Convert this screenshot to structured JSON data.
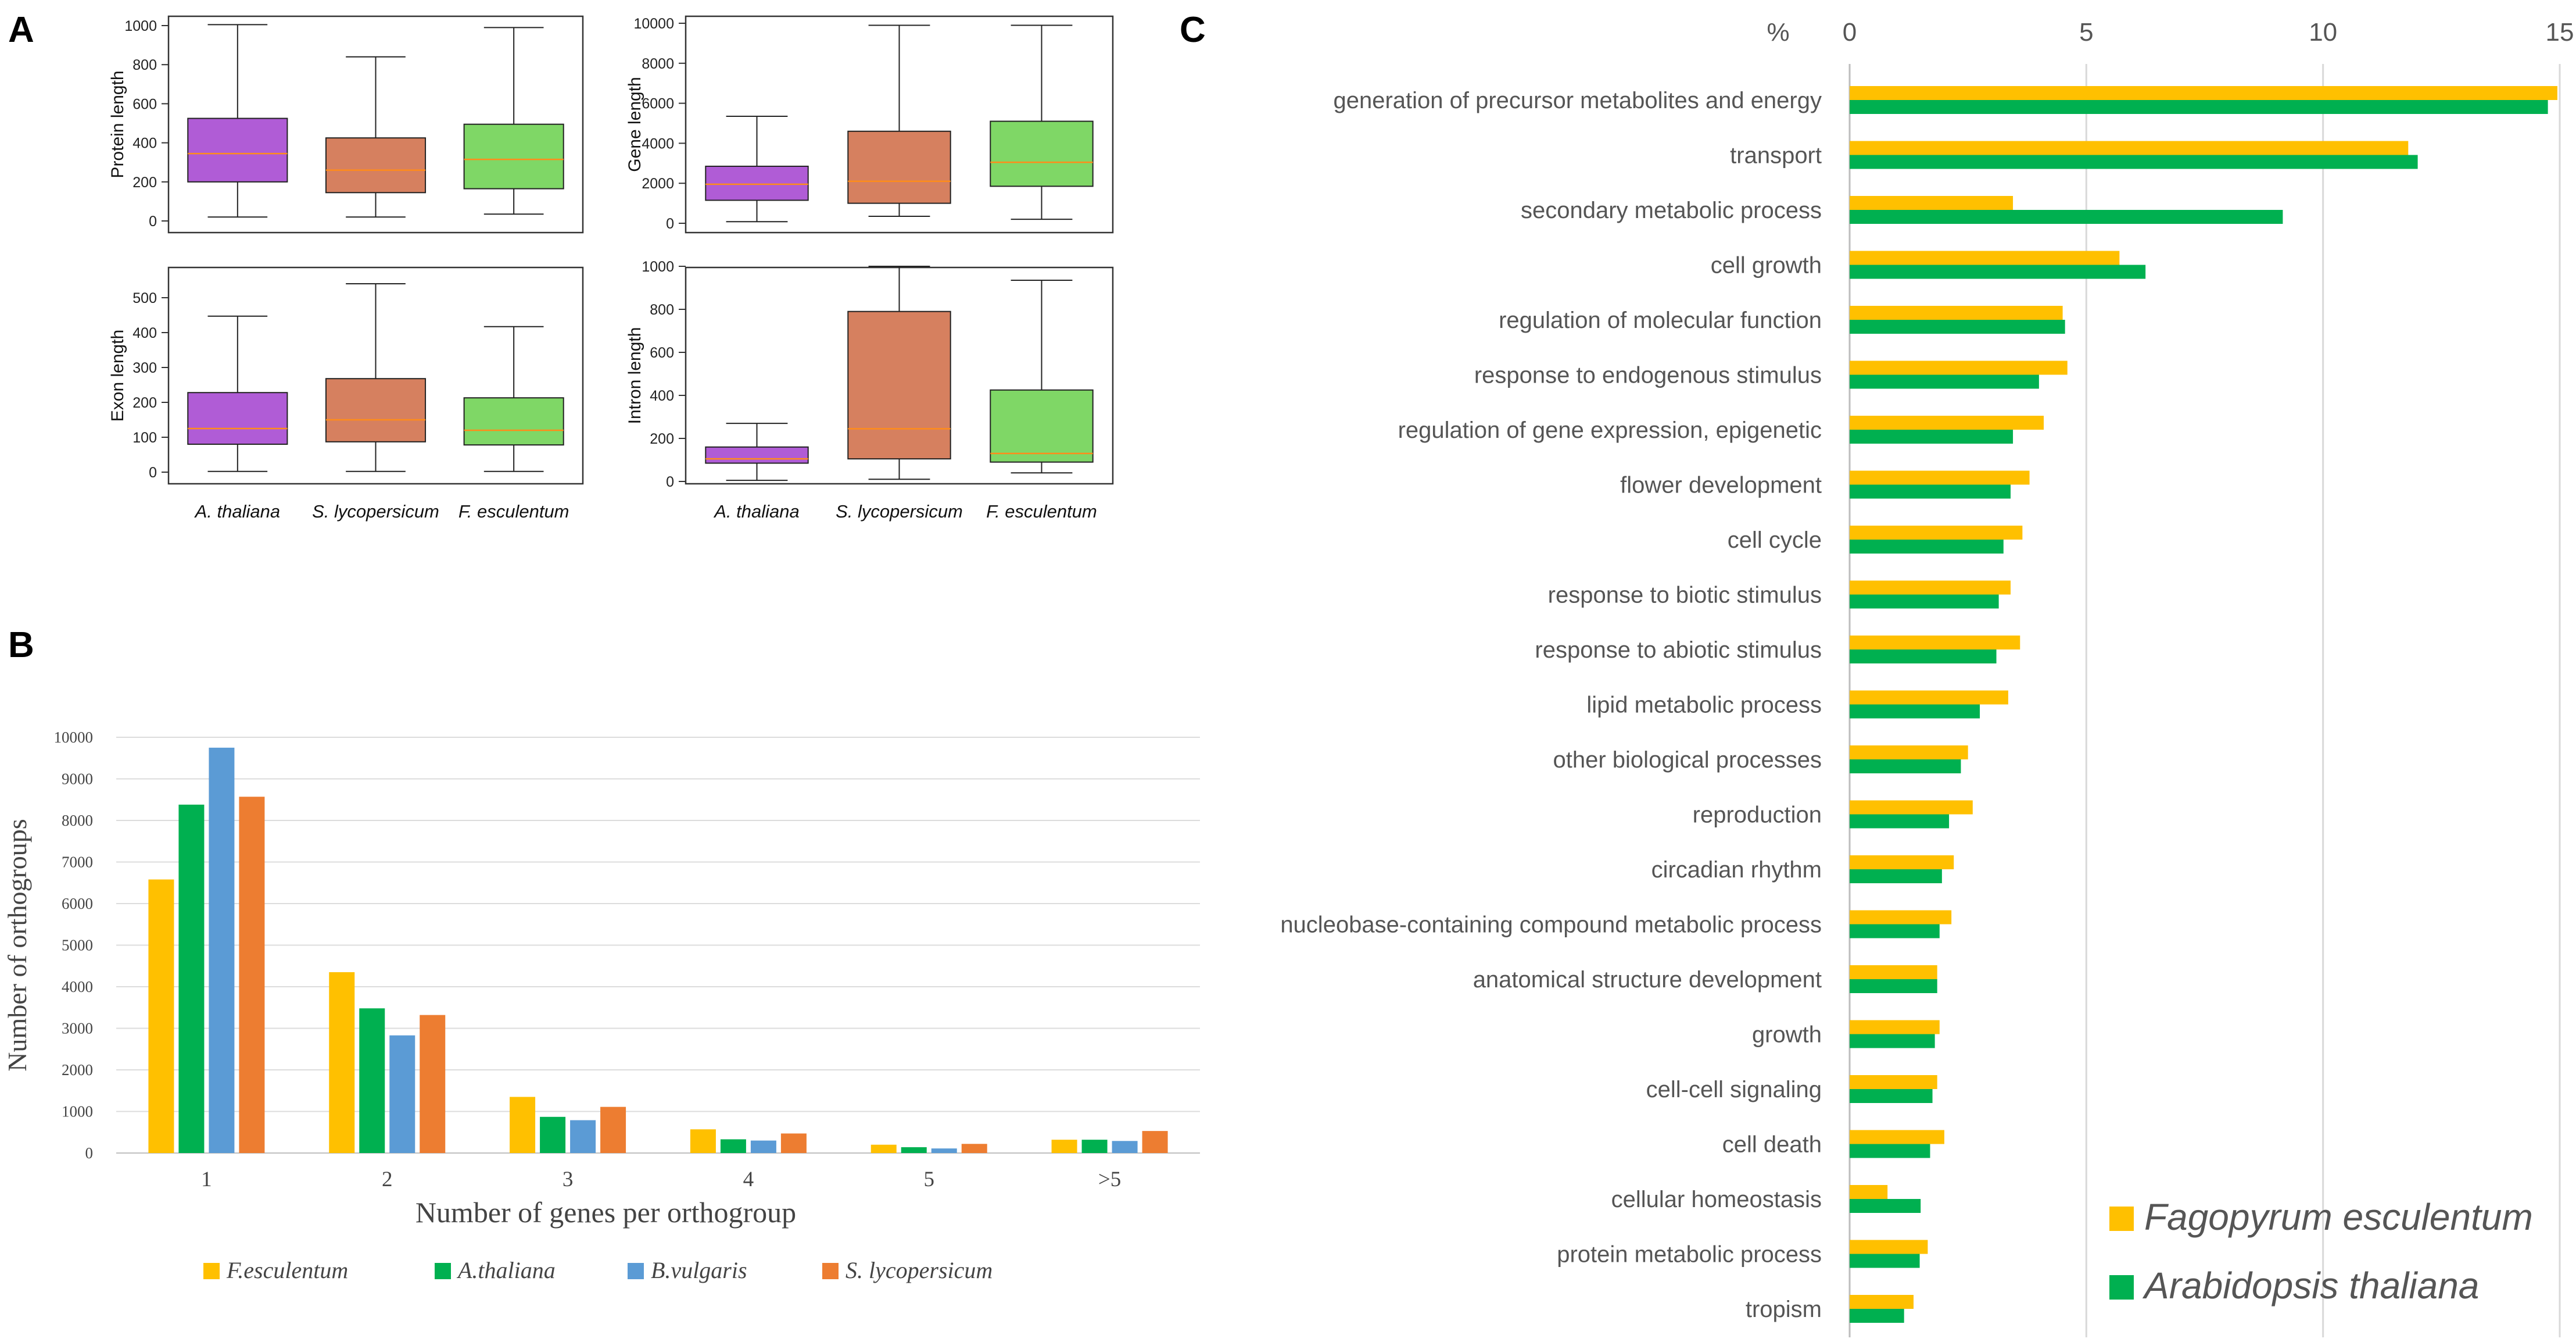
{
  "panel_labels": {
    "a": "A",
    "b": "B",
    "c": "C"
  },
  "chart_data": [
    {
      "id": "A1",
      "type": "box",
      "ylabel": "Protein length",
      "ylim": [
        0,
        1000
      ],
      "yticks": [
        0,
        200,
        400,
        600,
        800,
        1000
      ],
      "categories": [
        "A. thaliana",
        "S. lycopersicum",
        "F. esculentum"
      ],
      "show_xlabels": false,
      "boxes": [
        {
          "name": "A. thaliana",
          "color": "#b05cd6",
          "whisker_low": 20,
          "q1": 200,
          "median": 345,
          "q3": 525,
          "whisker_high": 1005
        },
        {
          "name": "S. lycopersicum",
          "color": "#d6805f",
          "whisker_low": 20,
          "q1": 145,
          "median": 260,
          "q3": 425,
          "whisker_high": 840
        },
        {
          "name": "F. esculentum",
          "color": "#7fd766",
          "whisker_low": 35,
          "q1": 165,
          "median": 315,
          "q3": 495,
          "whisker_high": 990
        }
      ]
    },
    {
      "id": "A2",
      "type": "box",
      "ylabel": "Gene length",
      "ylim": [
        0,
        10000
      ],
      "yticks": [
        0,
        2000,
        4000,
        6000,
        8000,
        10000
      ],
      "categories": [
        "A. thaliana",
        "S. lycopersicum",
        "F. esculentum"
      ],
      "show_xlabels": false,
      "boxes": [
        {
          "name": "A. thaliana",
          "color": "#b05cd6",
          "whisker_low": 80,
          "q1": 1150,
          "median": 1950,
          "q3": 2850,
          "whisker_high": 5350
        },
        {
          "name": "S. lycopersicum",
          "color": "#d6805f",
          "whisker_low": 350,
          "q1": 1000,
          "median": 2100,
          "q3": 4600,
          "whisker_high": 9900
        },
        {
          "name": "F. esculentum",
          "color": "#7fd766",
          "whisker_low": 200,
          "q1": 1850,
          "median": 3050,
          "q3": 5100,
          "whisker_high": 9900
        }
      ]
    },
    {
      "id": "A3",
      "type": "box",
      "ylabel": "Exon length",
      "ylim": [
        0,
        540
      ],
      "yticks": [
        0,
        100,
        200,
        300,
        400,
        500
      ],
      "categories": [
        "A. thaliana",
        "S. lycopersicum",
        "F. esculentum"
      ],
      "show_xlabels": true,
      "boxes": [
        {
          "name": "A. thaliana",
          "color": "#b05cd6",
          "whisker_low": 2,
          "q1": 80,
          "median": 125,
          "q3": 228,
          "whisker_high": 447
        },
        {
          "name": "S. lycopersicum",
          "color": "#d6805f",
          "whisker_low": 2,
          "q1": 87,
          "median": 150,
          "q3": 268,
          "whisker_high": 540
        },
        {
          "name": "F. esculentum",
          "color": "#7fd766",
          "whisker_low": 2,
          "q1": 78,
          "median": 120,
          "q3": 213,
          "whisker_high": 417
        }
      ]
    },
    {
      "id": "A4",
      "type": "box",
      "ylabel": "Intron length",
      "ylim": [
        0,
        1000
      ],
      "yticks": [
        0,
        200,
        400,
        600,
        800,
        1000
      ],
      "categories": [
        "A. thaliana",
        "S. lycopersicum",
        "F. esculentum"
      ],
      "show_xlabels": true,
      "boxes": [
        {
          "name": "A. thaliana",
          "color": "#b05cd6",
          "whisker_low": 5,
          "q1": 85,
          "median": 105,
          "q3": 160,
          "whisker_high": 270
        },
        {
          "name": "S. lycopersicum",
          "color": "#d6805f",
          "whisker_low": 10,
          "q1": 105,
          "median": 245,
          "q3": 790,
          "whisker_high": 1000
        },
        {
          "name": "F. esculentum",
          "color": "#7fd766",
          "whisker_low": 40,
          "q1": 90,
          "median": 130,
          "q3": 425,
          "whisker_high": 935
        }
      ]
    },
    {
      "id": "B",
      "type": "bar",
      "title": "",
      "xlabel": "Number of genes per orthogroup",
      "ylabel": "Number of orthogroups",
      "ylim": [
        0,
        10000
      ],
      "yticks": [
        0,
        1000,
        2000,
        3000,
        4000,
        5000,
        6000,
        7000,
        8000,
        9000,
        10000
      ],
      "categories": [
        "1",
        "2",
        "3",
        "4",
        "5",
        ">5"
      ],
      "series": [
        {
          "name": "F.esculentum",
          "color": "#ffc000",
          "values": [
            6580,
            4350,
            1350,
            570,
            200,
            320
          ]
        },
        {
          "name": "A.thaliana",
          "color": "#00b050",
          "values": [
            8380,
            3480,
            870,
            330,
            140,
            320
          ]
        },
        {
          "name": "B.vulgaris",
          "color": "#5b9bd5",
          "values": [
            9750,
            2830,
            790,
            300,
            110,
            290
          ]
        },
        {
          "name": "S. lycopersicum",
          "color": "#ed7d31",
          "values": [
            8570,
            3320,
            1110,
            470,
            220,
            530
          ]
        }
      ]
    },
    {
      "id": "C",
      "type": "bar",
      "orientation": "horizontal",
      "unit_label": "%",
      "xlim": [
        0,
        15
      ],
      "xticks": [
        0,
        5,
        10,
        15
      ],
      "categories": [
        "generation of precursor metabolites and energy",
        "transport",
        "secondary metabolic process",
        "cell growth",
        "regulation of molecular function",
        "response to endogenous stimulus",
        "regulation of gene expression, epigenetic",
        "flower development",
        "cell cycle",
        "response to biotic stimulus",
        "response to abiotic stimulus",
        "lipid metabolic process",
        "other biological processes",
        "reproduction",
        "circadian rhythm",
        "nucleobase-containing compound metabolic process",
        "anatomical structure development",
        "growth",
        "cell-cell signaling",
        "cell death",
        "cellular homeostasis",
        "protein metabolic process",
        "tropism"
      ],
      "series": [
        {
          "name": "Fagopyrum esculentum",
          "color": "#ffc000",
          "values": [
            14.95,
            11.8,
            3.45,
            5.7,
            4.5,
            4.6,
            4.1,
            3.8,
            3.65,
            3.4,
            3.6,
            3.35,
            2.5,
            2.6,
            2.2,
            2.15,
            1.85,
            1.9,
            1.85,
            2.0,
            0.8,
            1.65,
            1.35
          ]
        },
        {
          "name": "Arabidopsis thaliana",
          "color": "#00b050",
          "values": [
            14.75,
            12.0,
            9.15,
            6.25,
            4.55,
            4.0,
            3.45,
            3.4,
            3.25,
            3.15,
            3.1,
            2.75,
            2.35,
            2.1,
            1.95,
            1.9,
            1.85,
            1.8,
            1.75,
            1.7,
            1.5,
            1.48,
            1.15
          ]
        }
      ]
    }
  ]
}
